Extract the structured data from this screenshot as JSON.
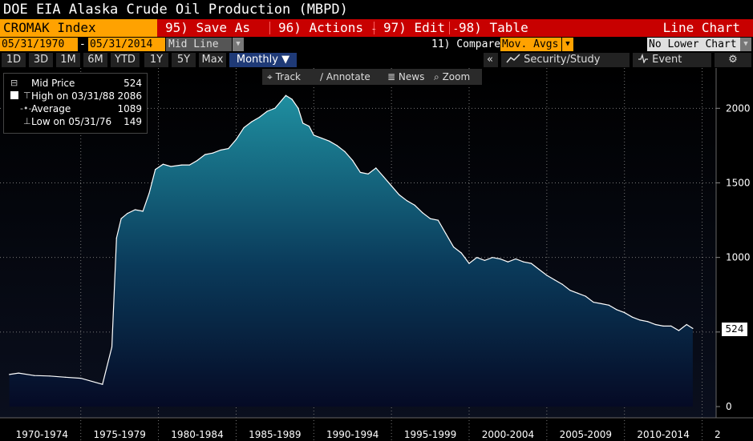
{
  "title": "DOE EIA Alaska Crude Oil Production (MBPD)",
  "toolbar": {
    "ticker": "CROMAK Index",
    "save_as": "95) Save As",
    "actions": "96) Actions",
    "edit": "97) Edit",
    "table": "98) Table",
    "line_chart": "Line Chart",
    "dropdown_arrow": "-"
  },
  "dates": {
    "start": "05/31/1970",
    "dash": "-",
    "end": "05/31/2014",
    "mid_line": "Mid Line",
    "compare": "11) Compare",
    "mov_avgs": "Mov. Avgs",
    "no_lower_chart": "No Lower Chart"
  },
  "ranges": {
    "items": [
      "1D",
      "3D",
      "1M",
      "6M",
      "YTD",
      "1Y",
      "5Y",
      "Max"
    ],
    "frequency": "Monthly",
    "frequency_arrow": "▼",
    "security_study": "Security/Study",
    "event": "Event",
    "gear": "⚙",
    "back": "«"
  },
  "inner_toolbar": {
    "track": "Track",
    "annotate": "Annotate",
    "news": "News",
    "zoom": "Zoom"
  },
  "legend": {
    "mid_price_label": "Mid Price",
    "mid_price_value": "524",
    "high_label": "High on 03/31/88",
    "high_value": "2086",
    "average_label": "Average",
    "average_value": "1089",
    "low_label": "Low on 05/31/76",
    "low_value": "149"
  },
  "last_value_label": "524",
  "colors": {
    "red_bar": "#c80000",
    "orange": "#ffa200",
    "area_top": "#1f8fa0",
    "area_bottom": "#050a25",
    "line": "#ffffff",
    "active_tab": "#1f3a77"
  },
  "chart_data": {
    "type": "area",
    "title": "DOE EIA Alaska Crude Oil Production (MBPD)",
    "series": [
      {
        "name": "Mid Price",
        "x": [
          1970.4,
          1971,
          1972,
          1973,
          1974,
          1975,
          1976.4,
          1977.0,
          1977.3,
          1977.6,
          1978,
          1978.5,
          1979,
          1979.4,
          1979.8,
          1980.3,
          1980.8,
          1981.5,
          1982,
          1982.5,
          1983,
          1983.5,
          1984,
          1984.5,
          1985,
          1985.5,
          1986,
          1986.5,
          1987,
          1987.5,
          1988.2,
          1988.6,
          1989,
          1989.3,
          1989.7,
          1990,
          1990.5,
          1991,
          1991.5,
          1992,
          1992.5,
          1993,
          1993.5,
          1994,
          1994.5,
          1995,
          1995.5,
          1996,
          1996.5,
          1997,
          1997.5,
          1998,
          1998.5,
          1999,
          1999.5,
          2000,
          2000.5,
          2001,
          2001.5,
          2002,
          2002.5,
          2003,
          2003.5,
          2004,
          2004.5,
          2005,
          2005.5,
          2006,
          2006.5,
          2007,
          2007.5,
          2008,
          2008.5,
          2009,
          2009.5,
          2010,
          2010.5,
          2011,
          2011.5,
          2012,
          2012.5,
          2013,
          2013.5,
          2014,
          2014.4
        ],
        "y": [
          215,
          225,
          208,
          205,
          197,
          190,
          149,
          400,
          1130,
          1260,
          1295,
          1320,
          1310,
          1430,
          1590,
          1625,
          1610,
          1620,
          1620,
          1650,
          1690,
          1700,
          1720,
          1730,
          1790,
          1870,
          1910,
          1940,
          1980,
          2000,
          2086,
          2060,
          2000,
          1900,
          1880,
          1820,
          1800,
          1780,
          1750,
          1710,
          1650,
          1570,
          1560,
          1600,
          1540,
          1480,
          1420,
          1380,
          1350,
          1300,
          1260,
          1250,
          1160,
          1070,
          1030,
          960,
          1000,
          980,
          1000,
          990,
          970,
          990,
          970,
          960,
          920,
          880,
          850,
          820,
          780,
          760,
          740,
          700,
          690,
          680,
          650,
          630,
          600,
          580,
          570,
          550,
          540,
          540,
          510,
          550,
          524
        ]
      }
    ],
    "x_ticks": [
      "1970-1974",
      "1975-1979",
      "1980-1984",
      "1985-1989",
      "1990-1994",
      "1995-1999",
      "2000-2004",
      "2005-2009",
      "2010-2014"
    ],
    "x_tick_cut": "2",
    "y_ticks": [
      0,
      500,
      1000,
      1500,
      2000
    ],
    "ylim": [
      0,
      2270
    ],
    "xlim": [
      1969.8,
      2015.9
    ],
    "grid": true,
    "legend_position": "top-left"
  }
}
